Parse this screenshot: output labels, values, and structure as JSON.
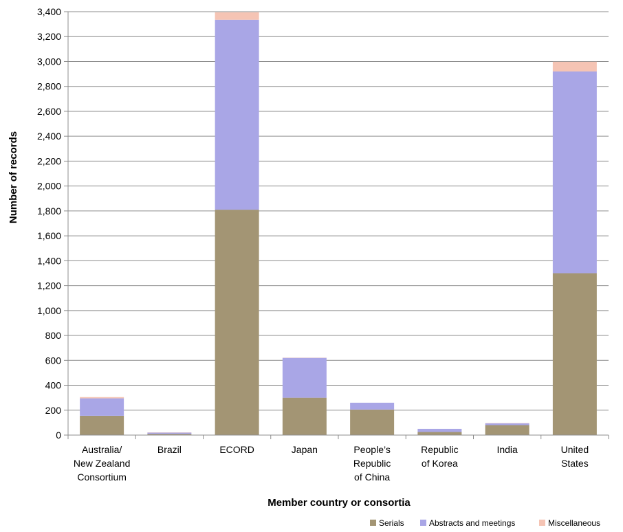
{
  "chart_data": {
    "type": "bar",
    "stacked": true,
    "categories": [
      [
        "Australia/",
        "New Zealand",
        "Consortium"
      ],
      [
        "Brazil"
      ],
      [
        "ECORD"
      ],
      [
        "Japan"
      ],
      [
        "People’s",
        "Republic",
        "of China"
      ],
      [
        "Republic",
        "of Korea"
      ],
      [
        "India"
      ],
      [
        "United",
        "States"
      ]
    ],
    "series": [
      {
        "name": "Serials",
        "color": "#a39574",
        "values": [
          155,
          10,
          1810,
          300,
          205,
          25,
          80,
          1300
        ]
      },
      {
        "name": "Abstracts and meetings",
        "color": "#a9a6e6",
        "values": [
          140,
          10,
          1525,
          320,
          55,
          25,
          15,
          1620
        ]
      },
      {
        "name": "Miscellaneous",
        "color": "#f5c4b4",
        "values": [
          10,
          2,
          60,
          2,
          0,
          0,
          2,
          78
        ]
      }
    ],
    "title": "",
    "xlabel": "Member country or consortia",
    "ylabel": "Number of records",
    "ylim": [
      0,
      3400
    ],
    "ytick_step": 200,
    "ytick_labels": [
      "0",
      "200",
      "400",
      "600",
      "800",
      "1,000",
      "1,200",
      "1,400",
      "1,600",
      "1,800",
      "2,000",
      "2,200",
      "2,400",
      "2,600",
      "2,800",
      "3,000",
      "3,200",
      "3,400"
    ],
    "grid": true,
    "gridline_color": "#8c8c8c",
    "legend_position": "bottom-right"
  }
}
